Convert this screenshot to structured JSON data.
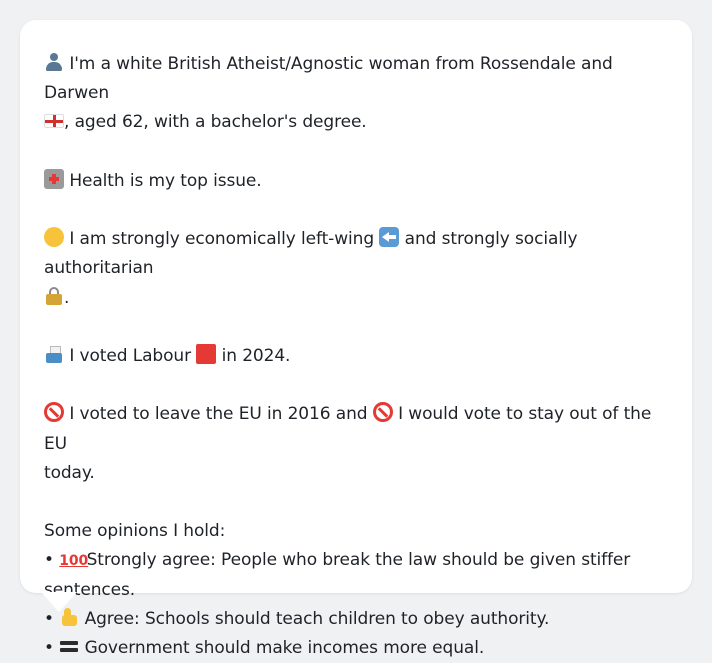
{
  "message": {
    "intro": "I'm a white British Atheist/Agnostic woman from Rossendale and Darwen",
    "intro_cont": ", aged 62, with a bachelor's degree.",
    "top_issue": "Health is my top issue.",
    "econ_a": "I am strongly economically left-wing",
    "econ_b": "and strongly socially authoritarian",
    "econ_end": ".",
    "vote_a": "I voted Labour",
    "vote_b": "in 2024.",
    "eu_a": "I voted to leave the EU in 2016 and",
    "eu_b": "I would vote to stay out of the EU",
    "eu_c": "today.",
    "opinions_header": "Some opinions I hold:",
    "bullet": "•",
    "op1_label": "Strongly agree: People who break the law should be given stiffer",
    "op1_cont": "sentences.",
    "op2_label": "Agree: Schools should teach children to obey authority.",
    "op3_label": "Government should make incomes more equal."
  },
  "icons": {
    "person": "bust-in-silhouette",
    "flag": "flag-england",
    "health": "hospital",
    "thinking": "thinking-face",
    "left": "left-arrow",
    "lock": "locked",
    "ballot": "ballot-box",
    "labour": "red-square",
    "no": "no-entry-sign",
    "hundred": "hundred-points",
    "thumb": "thumbs-up",
    "equals": "heavy-equals-sign"
  },
  "colors": {
    "background": "#f0f1f3",
    "bubble": "#ffffff",
    "text": "#1f2328",
    "accent_red": "#e53935"
  }
}
